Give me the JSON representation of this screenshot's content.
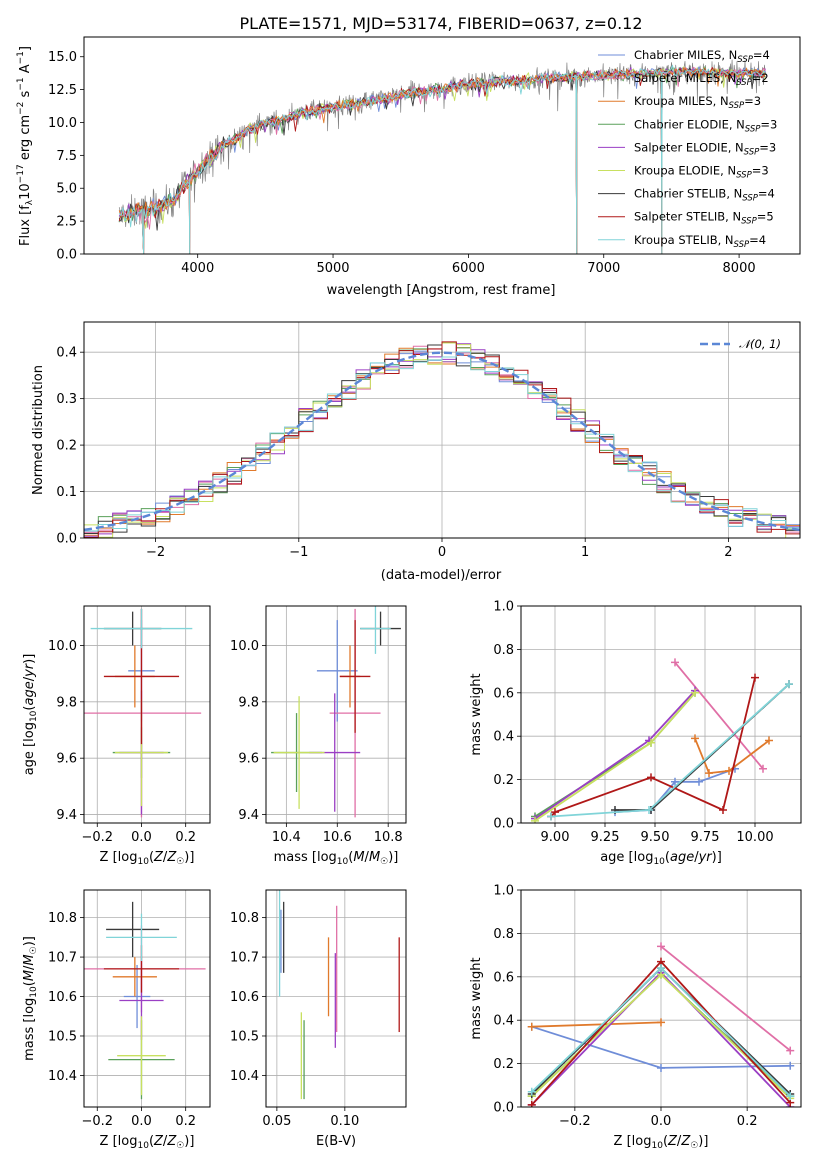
{
  "figure_title": "PLATE=1571, MJD=53174, FIBERID=0637, z=0.12",
  "colors": {
    "chabrier_miles": "#6f8dd8",
    "salpeter_miles": "#e06fa6",
    "kroupa_miles": "#e07a2c",
    "chabrier_elodie": "#5aa05a",
    "salpeter_elodie": "#9a3fc4",
    "kroupa_elodie": "#c8e060",
    "chabrier_stelib": "#3a3a3a",
    "salpeter_stelib": "#b01818",
    "kroupa_stelib": "#80d4d8",
    "data": "#808080",
    "normal": "#5b87d6"
  },
  "chart_data": [
    {
      "id": "spectrum",
      "type": "line",
      "title": "PLATE=1571, MJD=53174, FIBERID=0637, z=0.12",
      "xlabel": "wavelength [Angstrom, rest frame]",
      "ylabel": "Flux [f_λ 10^-17 erg cm^-2 s^-1 A^-1]",
      "xlim": [
        3160,
        8450
      ],
      "ylim": [
        0,
        16.5
      ],
      "xticks": [
        4000,
        5000,
        6000,
        7000,
        8000
      ],
      "yticks": [
        0.0,
        2.5,
        5.0,
        7.5,
        10.0,
        12.5,
        15.0
      ],
      "grid": false,
      "legend_position": "top-right",
      "legend": [
        "Chabrier MILES, N_SSP=4",
        "Salpeter MILES, N_SSP=2",
        "Kroupa MILES, N_SSP=3",
        "Chabrier ELODIE, N_SSP=3",
        "Salpeter ELODIE, N_SSP=3",
        "Kroupa ELODIE, N_SSP=3",
        "Chabrier STELIB, N_SSP=4",
        "Salpeter STELIB, N_SSP=5",
        "Kroupa STELIB, N_SSP=4"
      ],
      "continuum": {
        "x": [
          3400,
          3600,
          3800,
          4000,
          4200,
          4400,
          4600,
          4800,
          5000,
          5200,
          5400,
          5600,
          5800,
          6000,
          6200,
          6400,
          6600,
          6800,
          7000,
          7200,
          7400,
          7600,
          7800,
          8000,
          8200
        ],
        "y": [
          2.9,
          3.3,
          3.9,
          6.4,
          8.3,
          9.6,
          10.2,
          10.8,
          11.2,
          11.5,
          11.9,
          12.3,
          12.6,
          12.9,
          13.1,
          13.2,
          13.4,
          13.5,
          13.6,
          13.7,
          13.8,
          13.9,
          13.8,
          13.7,
          13.8
        ]
      },
      "drops_to_zero": [
        3600,
        3940,
        6800,
        7430
      ]
    },
    {
      "id": "residuals",
      "type": "line",
      "xlabel": "(data-model)/error",
      "ylabel": "Normed distribution",
      "xlim": [
        -2.5,
        2.5
      ],
      "ylim": [
        0,
        0.465
      ],
      "xticks": [
        -2,
        -1,
        0,
        1,
        2
      ],
      "xticklabels": [
        "−2",
        "−1",
        "0",
        "1",
        "2"
      ],
      "yticks": [
        0.0,
        0.1,
        0.2,
        0.3,
        0.4
      ],
      "grid": true,
      "legend_position": "top-right",
      "legend": [
        "𝒩(0, 1)"
      ],
      "bin_edges": [
        -2.5,
        -2.4,
        -2.3,
        -2.2,
        -2.1,
        -2.0,
        -1.9,
        -1.8,
        -1.7,
        -1.6,
        -1.5,
        -1.4,
        -1.3,
        -1.2,
        -1.1,
        -1.0,
        -0.9,
        -0.8,
        -0.7,
        -0.6,
        -0.5,
        -0.4,
        -0.3,
        -0.2,
        -0.1,
        0.0,
        0.1,
        0.2,
        0.3,
        0.4,
        0.5,
        0.6,
        0.7,
        0.8,
        0.9,
        1.0,
        1.1,
        1.2,
        1.3,
        1.4,
        1.5,
        1.6,
        1.7,
        1.8,
        1.9,
        2.0,
        2.1,
        2.2,
        2.3,
        2.4,
        2.5
      ],
      "gaussian_curve": "N(0,1)"
    },
    {
      "id": "age_vs_Z",
      "type": "scatter",
      "xlabel": "Z [log10(Z/Z☉)]",
      "ylabel": "age  [log10(age/yr)]",
      "xlim": [
        -0.26,
        0.31
      ],
      "ylim": [
        9.37,
        10.14
      ],
      "xticks": [
        -0.2,
        0.0,
        0.2
      ],
      "xticklabels": [
        "−0.2",
        "0.0",
        "0.2"
      ],
      "yticks": [
        9.4,
        9.6,
        9.8,
        10.0
      ],
      "grid": true,
      "points": [
        {
          "x": 0.0,
          "y": 9.91,
          "xerr": 0.06,
          "yerr": 0.18
        },
        {
          "x": 0.0,
          "y": 9.76,
          "xerr": 0.27,
          "yerr": 0.37
        },
        {
          "x": -0.03,
          "y": 9.89,
          "xerr": 0.09,
          "yerr": 0.11
        },
        {
          "x": 0.0,
          "y": 9.62,
          "xerr": 0.13,
          "yerr": 0.09
        },
        {
          "x": 0.0,
          "y": 9.62,
          "xerr": 0.1,
          "yerr": 0.22
        },
        {
          "x": 0.0,
          "y": 9.62,
          "xerr": 0.12,
          "yerr": 0.19
        },
        {
          "x": -0.04,
          "y": 10.06,
          "xerr": 0.13,
          "yerr": 0.06
        },
        {
          "x": 0.0,
          "y": 9.89,
          "xerr": 0.17,
          "yerr": 0.24
        },
        {
          "x": 0.0,
          "y": 10.06,
          "xerr": 0.23,
          "yerr": 0.07
        }
      ]
    },
    {
      "id": "age_vs_mass",
      "type": "scatter",
      "xlabel": "mass [log10(M/M☉)]",
      "xlim": [
        10.32,
        10.87
      ],
      "ylim": [
        9.37,
        10.14
      ],
      "xticks": [
        10.4,
        10.6,
        10.8
      ],
      "yticks": [
        9.4,
        9.6,
        9.8,
        10.0
      ],
      "grid": true,
      "points": [
        {
          "x": 10.6,
          "y": 9.91,
          "xerr": 0.08,
          "yerr": 0.18
        },
        {
          "x": 10.67,
          "y": 9.76,
          "xerr": 0.1,
          "yerr": 0.37
        },
        {
          "x": 10.65,
          "y": 9.89,
          "xerr": 0.04,
          "yerr": 0.11
        },
        {
          "x": 10.44,
          "y": 9.62,
          "xerr": 0.1,
          "yerr": 0.14
        },
        {
          "x": 10.59,
          "y": 9.62,
          "xerr": 0.1,
          "yerr": 0.21
        },
        {
          "x": 10.45,
          "y": 9.62,
          "xerr": 0.1,
          "yerr": 0.2
        },
        {
          "x": 10.77,
          "y": 10.06,
          "xerr": 0.08,
          "yerr": 0.06
        },
        {
          "x": 10.67,
          "y": 9.89,
          "xerr": 0.06,
          "yerr": 0.2
        },
        {
          "x": 10.75,
          "y": 10.06,
          "xerr": 0.06,
          "yerr": 0.09
        }
      ]
    },
    {
      "id": "weight_vs_age",
      "type": "line",
      "xlabel": "age  [log10(age/yr)]",
      "ylabel": "mass weight",
      "xlim": [
        8.83,
        10.23
      ],
      "ylim": [
        0,
        1.0
      ],
      "xticks": [
        9.0,
        9.25,
        9.5,
        9.75,
        10.0
      ],
      "xticklabels": [
        "9.00",
        "9.25",
        "9.50",
        "9.75",
        "10.00"
      ],
      "yticks": [
        0.0,
        0.2,
        0.4,
        0.6,
        0.8,
        1.0
      ],
      "grid": true,
      "series": [
        {
          "x": [
            9.3,
            9.48,
            9.6,
            9.72,
            9.9
          ],
          "y": [
            0.05,
            0.06,
            0.19,
            0.19,
            0.25
          ]
        },
        {
          "x": [
            9.6,
            10.04
          ],
          "y": [
            0.74,
            0.25
          ]
        },
        {
          "x": [
            9.7,
            9.77,
            9.87,
            10.07
          ],
          "y": [
            0.39,
            0.23,
            0.24,
            0.38
          ]
        },
        {
          "x": [
            8.9,
            9.48,
            9.7
          ],
          "y": [
            0.03,
            0.37,
            0.6
          ]
        },
        {
          "x": [
            8.9,
            9.47,
            9.7
          ],
          "y": [
            0.02,
            0.38,
            0.61
          ]
        },
        {
          "x": [
            8.9,
            9.48,
            9.7
          ],
          "y": [
            0.01,
            0.37,
            0.6
          ]
        },
        {
          "x": [
            9.3,
            9.48,
            10.17
          ],
          "y": [
            0.06,
            0.06,
            0.64
          ]
        },
        {
          "x": [
            8.98,
            9.0,
            9.48,
            9.84,
            10.0
          ],
          "y": [
            0.03,
            0.05,
            0.21,
            0.06,
            0.67
          ]
        },
        {
          "x": [
            8.98,
            9.47,
            10.17
          ],
          "y": [
            0.03,
            0.06,
            0.64
          ]
        }
      ]
    },
    {
      "id": "mass_vs_Z",
      "type": "scatter",
      "xlabel": "Z [log10(Z/Z☉)]",
      "ylabel": "mass [log10(M/M☉)]",
      "xlim": [
        -0.26,
        0.31
      ],
      "ylim": [
        10.32,
        10.87
      ],
      "xticks": [
        -0.2,
        0.0,
        0.2
      ],
      "xticklabels": [
        "−0.2",
        "0.0",
        "0.2"
      ],
      "yticks": [
        10.4,
        10.5,
        10.6,
        10.7,
        10.8
      ],
      "grid": true,
      "points": [
        {
          "x": -0.02,
          "y": 10.6,
          "xerr": 0.06,
          "yerr": 0.08
        },
        {
          "x": 0.0,
          "y": 10.67,
          "xerr": 0.29,
          "yerr": 0.11
        },
        {
          "x": -0.03,
          "y": 10.65,
          "xerr": 0.1,
          "yerr": 0.05
        },
        {
          "x": 0.0,
          "y": 10.44,
          "xerr": 0.15,
          "yerr": 0.1
        },
        {
          "x": 0.0,
          "y": 10.59,
          "xerr": 0.1,
          "yerr": 0.1
        },
        {
          "x": 0.0,
          "y": 10.45,
          "xerr": 0.11,
          "yerr": 0.1
        },
        {
          "x": -0.04,
          "y": 10.77,
          "xerr": 0.12,
          "yerr": 0.07
        },
        {
          "x": 0.0,
          "y": 10.67,
          "xerr": 0.17,
          "yerr": 0.06
        },
        {
          "x": 0.0,
          "y": 10.75,
          "xerr": 0.16,
          "yerr": 0.06
        }
      ]
    },
    {
      "id": "mass_vs_ebv",
      "type": "scatter",
      "xlabel": "E(B-V)",
      "xlim": [
        0.042,
        0.145
      ],
      "ylim": [
        10.32,
        10.87
      ],
      "xticks": [
        0.05,
        0.1
      ],
      "xticklabels": [
        "0.05",
        "0.10"
      ],
      "yticks": [
        10.4,
        10.5,
        10.6,
        10.7,
        10.8
      ],
      "grid": true,
      "points": [
        {
          "x": 0.053,
          "y": 10.74,
          "yerr": 0.08
        },
        {
          "x": 0.094,
          "y": 10.67,
          "yerr": 0.16
        },
        {
          "x": 0.088,
          "y": 10.65,
          "yerr": 0.1
        },
        {
          "x": 0.07,
          "y": 10.44,
          "yerr": 0.1
        },
        {
          "x": 0.093,
          "y": 10.59,
          "yerr": 0.12
        },
        {
          "x": 0.068,
          "y": 10.45,
          "yerr": 0.11
        },
        {
          "x": 0.055,
          "y": 10.75,
          "yerr": 0.09
        },
        {
          "x": 0.14,
          "y": 10.63,
          "yerr": 0.12
        },
        {
          "x": 0.052,
          "y": 10.74,
          "yerr": 0.14
        }
      ]
    },
    {
      "id": "weight_vs_Z",
      "type": "line",
      "xlabel": "Z [log10(Z/Z☉)]",
      "ylabel": "mass weight",
      "xlim": [
        -0.325,
        0.325
      ],
      "ylim": [
        0,
        1.0
      ],
      "xticks": [
        -0.2,
        0.0,
        0.2
      ],
      "xticklabels": [
        "−0.2",
        "0.0",
        "0.2"
      ],
      "yticks": [
        0.0,
        0.2,
        0.4,
        0.6,
        0.8,
        1.0
      ],
      "grid": true,
      "series": [
        {
          "x": [
            -0.3,
            0.0,
            0.3
          ],
          "y": [
            0.37,
            0.18,
            0.19
          ]
        },
        {
          "x": [
            0.0,
            0.3
          ],
          "y": [
            0.74,
            0.26
          ]
        },
        {
          "x": [
            -0.3,
            0.0
          ],
          "y": [
            0.37,
            0.39
          ]
        },
        {
          "x": [
            -0.3,
            0.0,
            0.3
          ],
          "y": [
            0.05,
            0.61,
            0.05
          ]
        },
        {
          "x": [
            -0.3,
            0.0,
            0.3
          ],
          "y": [
            0.01,
            0.62,
            0.0
          ]
        },
        {
          "x": [
            -0.3,
            0.0,
            0.3
          ],
          "y": [
            0.05,
            0.61,
            0.04
          ]
        },
        {
          "x": [
            -0.3,
            0.0,
            0.3
          ],
          "y": [
            0.06,
            0.64,
            0.06
          ]
        },
        {
          "x": [
            -0.3,
            0.0,
            0.3
          ],
          "y": [
            0.01,
            0.67,
            0.02
          ]
        },
        {
          "x": [
            -0.3,
            0.0,
            0.3
          ],
          "y": [
            0.07,
            0.64,
            0.05
          ]
        }
      ]
    }
  ]
}
